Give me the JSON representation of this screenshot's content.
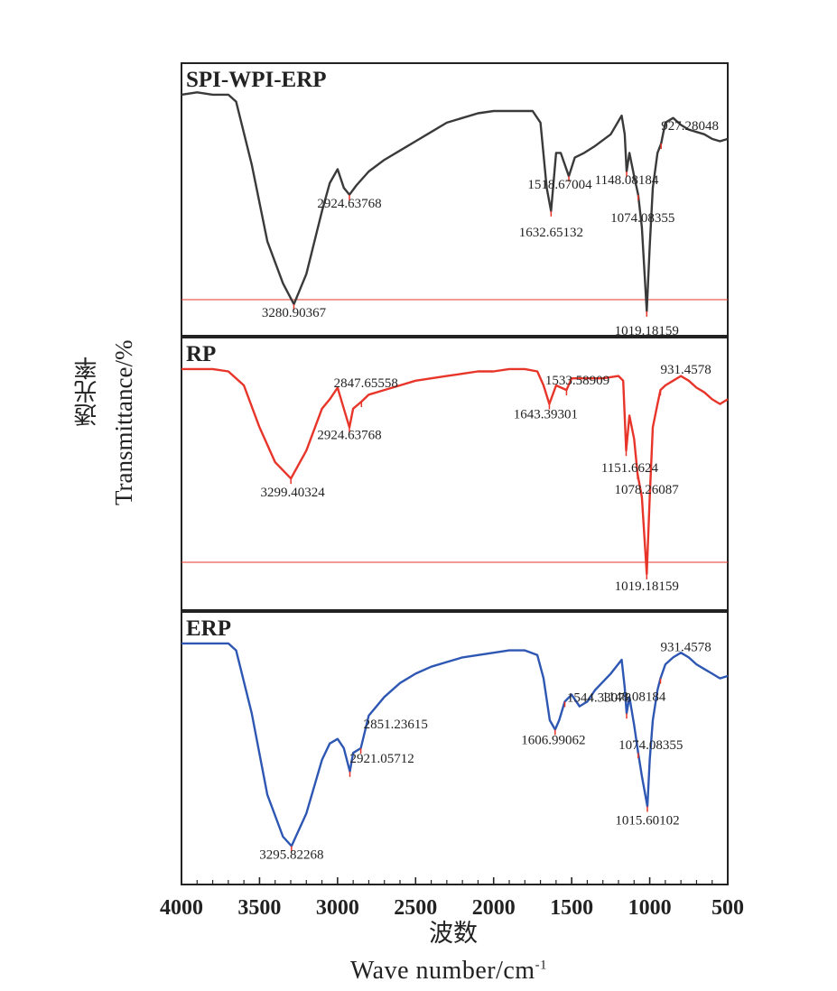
{
  "chart_data": {
    "type": "line",
    "xlim": [
      4000,
      500
    ],
    "x_ticks": [
      4000,
      3500,
      3000,
      2500,
      2000,
      1500,
      1000,
      500
    ],
    "x_tick_labels": [
      "4000",
      "3500",
      "3000",
      "2500",
      "2000",
      "1500",
      "1000",
      "500"
    ],
    "xlabel_cn": "波数",
    "xlabel_en_main": "Wave  number/cm",
    "xlabel_en_sup": "-1",
    "ylabel_cn": "透光率",
    "ylabel_en": "Transmittance/%",
    "panels": [
      {
        "name": "SPI-WPI-ERP",
        "color": "#3a3a3a",
        "points": [
          [
            4000,
            0.05
          ],
          [
            3900,
            0.04
          ],
          [
            3800,
            0.05
          ],
          [
            3700,
            0.05
          ],
          [
            3650,
            0.08
          ],
          [
            3550,
            0.35
          ],
          [
            3450,
            0.68
          ],
          [
            3350,
            0.86
          ],
          [
            3280,
            0.95
          ],
          [
            3200,
            0.82
          ],
          [
            3100,
            0.55
          ],
          [
            3050,
            0.43
          ],
          [
            3000,
            0.37
          ],
          [
            2960,
            0.45
          ],
          [
            2924,
            0.48
          ],
          [
            2880,
            0.44
          ],
          [
            2800,
            0.38
          ],
          [
            2700,
            0.33
          ],
          [
            2600,
            0.29
          ],
          [
            2500,
            0.25
          ],
          [
            2400,
            0.21
          ],
          [
            2300,
            0.17
          ],
          [
            2200,
            0.15
          ],
          [
            2100,
            0.13
          ],
          [
            2000,
            0.12
          ],
          [
            1900,
            0.12
          ],
          [
            1800,
            0.12
          ],
          [
            1750,
            0.12
          ],
          [
            1700,
            0.17
          ],
          [
            1660,
            0.45
          ],
          [
            1632,
            0.55
          ],
          [
            1600,
            0.3
          ],
          [
            1570,
            0.3
          ],
          [
            1518,
            0.4
          ],
          [
            1480,
            0.32
          ],
          [
            1420,
            0.3
          ],
          [
            1350,
            0.27
          ],
          [
            1250,
            0.22
          ],
          [
            1180,
            0.14
          ],
          [
            1160,
            0.22
          ],
          [
            1148,
            0.38
          ],
          [
            1130,
            0.3
          ],
          [
            1100,
            0.4
          ],
          [
            1074,
            0.48
          ],
          [
            1050,
            0.62
          ],
          [
            1019,
            0.98
          ],
          [
            1000,
            0.7
          ],
          [
            980,
            0.45
          ],
          [
            950,
            0.3
          ],
          [
            927,
            0.26
          ],
          [
            900,
            0.17
          ],
          [
            850,
            0.15
          ],
          [
            800,
            0.18
          ],
          [
            750,
            0.2
          ],
          [
            700,
            0.21
          ],
          [
            650,
            0.22
          ],
          [
            600,
            0.24
          ],
          [
            550,
            0.25
          ],
          [
            500,
            0.24
          ]
        ],
        "baseline": 0.93,
        "annotations": [
          {
            "x": 3280,
            "label": "3280.90367"
          },
          {
            "x": 2924,
            "label": "2924.63768"
          },
          {
            "x": 1632,
            "label": "1632.65132"
          },
          {
            "x": 1518,
            "label": "1518.67004"
          },
          {
            "x": 1148,
            "label": "1148.08184"
          },
          {
            "x": 1074,
            "label": "1074.08355"
          },
          {
            "x": 1019,
            "label": "1019.18159"
          },
          {
            "x": 927,
            "label": "927.28048"
          }
        ]
      },
      {
        "name": "RP",
        "color": "#e8352a",
        "points": [
          [
            4000,
            0.05
          ],
          [
            3900,
            0.05
          ],
          [
            3800,
            0.05
          ],
          [
            3700,
            0.06
          ],
          [
            3600,
            0.12
          ],
          [
            3500,
            0.3
          ],
          [
            3400,
            0.45
          ],
          [
            3299,
            0.52
          ],
          [
            3200,
            0.4
          ],
          [
            3100,
            0.22
          ],
          [
            3050,
            0.18
          ],
          [
            3000,
            0.13
          ],
          [
            2960,
            0.22
          ],
          [
            2924,
            0.3
          ],
          [
            2900,
            0.22
          ],
          [
            2847,
            0.19
          ],
          [
            2800,
            0.16
          ],
          [
            2700,
            0.14
          ],
          [
            2600,
            0.12
          ],
          [
            2500,
            0.1
          ],
          [
            2400,
            0.09
          ],
          [
            2300,
            0.08
          ],
          [
            2200,
            0.07
          ],
          [
            2100,
            0.06
          ],
          [
            2000,
            0.06
          ],
          [
            1900,
            0.05
          ],
          [
            1800,
            0.05
          ],
          [
            1720,
            0.06
          ],
          [
            1680,
            0.12
          ],
          [
            1643,
            0.2
          ],
          [
            1600,
            0.12
          ],
          [
            1533,
            0.14
          ],
          [
            1500,
            0.09
          ],
          [
            1450,
            0.09
          ],
          [
            1400,
            0.09
          ],
          [
            1300,
            0.09
          ],
          [
            1200,
            0.08
          ],
          [
            1170,
            0.1
          ],
          [
            1151,
            0.4
          ],
          [
            1130,
            0.25
          ],
          [
            1100,
            0.35
          ],
          [
            1078,
            0.5
          ],
          [
            1050,
            0.6
          ],
          [
            1019,
            0.93
          ],
          [
            1000,
            0.6
          ],
          [
            980,
            0.3
          ],
          [
            950,
            0.2
          ],
          [
            931,
            0.14
          ],
          [
            900,
            0.12
          ],
          [
            850,
            0.1
          ],
          [
            800,
            0.08
          ],
          [
            750,
            0.1
          ],
          [
            700,
            0.13
          ],
          [
            650,
            0.15
          ],
          [
            600,
            0.18
          ],
          [
            550,
            0.2
          ],
          [
            500,
            0.18
          ]
        ],
        "baseline": 0.88,
        "annotations": [
          {
            "x": 3299,
            "label": "3299.40324"
          },
          {
            "x": 2924,
            "label": "2924.63768"
          },
          {
            "x": 2847,
            "label": "2847.65558"
          },
          {
            "x": 1643,
            "label": "1643.39301"
          },
          {
            "x": 1533,
            "label": "1533.58909"
          },
          {
            "x": 1151,
            "label": "1151.6624"
          },
          {
            "x": 1078,
            "label": "1078.26087"
          },
          {
            "x": 1019,
            "label": "1019.18159"
          },
          {
            "x": 931,
            "label": "931.4578"
          }
        ]
      },
      {
        "name": "ERP",
        "color": "#2e57b3",
        "points": [
          [
            4000,
            0.05
          ],
          [
            3900,
            0.05
          ],
          [
            3800,
            0.05
          ],
          [
            3700,
            0.05
          ],
          [
            3650,
            0.08
          ],
          [
            3550,
            0.35
          ],
          [
            3450,
            0.7
          ],
          [
            3350,
            0.88
          ],
          [
            3295,
            0.92
          ],
          [
            3200,
            0.78
          ],
          [
            3100,
            0.55
          ],
          [
            3050,
            0.48
          ],
          [
            3000,
            0.46
          ],
          [
            2960,
            0.5
          ],
          [
            2921,
            0.6
          ],
          [
            2900,
            0.52
          ],
          [
            2851,
            0.5
          ],
          [
            2800,
            0.36
          ],
          [
            2700,
            0.28
          ],
          [
            2600,
            0.22
          ],
          [
            2500,
            0.18
          ],
          [
            2400,
            0.15
          ],
          [
            2300,
            0.13
          ],
          [
            2200,
            0.11
          ],
          [
            2100,
            0.1
          ],
          [
            2000,
            0.09
          ],
          [
            1900,
            0.08
          ],
          [
            1800,
            0.08
          ],
          [
            1720,
            0.1
          ],
          [
            1680,
            0.2
          ],
          [
            1640,
            0.38
          ],
          [
            1606,
            0.42
          ],
          [
            1580,
            0.38
          ],
          [
            1544,
            0.3
          ],
          [
            1500,
            0.27
          ],
          [
            1450,
            0.32
          ],
          [
            1400,
            0.3
          ],
          [
            1350,
            0.25
          ],
          [
            1250,
            0.18
          ],
          [
            1180,
            0.12
          ],
          [
            1160,
            0.24
          ],
          [
            1148,
            0.35
          ],
          [
            1130,
            0.28
          ],
          [
            1100,
            0.4
          ],
          [
            1074,
            0.52
          ],
          [
            1050,
            0.62
          ],
          [
            1015,
            0.75
          ],
          [
            1000,
            0.55
          ],
          [
            980,
            0.38
          ],
          [
            950,
            0.25
          ],
          [
            931,
            0.2
          ],
          [
            900,
            0.14
          ],
          [
            850,
            0.11
          ],
          [
            800,
            0.09
          ],
          [
            750,
            0.11
          ],
          [
            700,
            0.14
          ],
          [
            650,
            0.16
          ],
          [
            600,
            0.18
          ],
          [
            550,
            0.2
          ],
          [
            500,
            0.19
          ]
        ],
        "annotations": [
          {
            "x": 3295,
            "label": "3295.82268"
          },
          {
            "x": 2921,
            "label": "2921.05712"
          },
          {
            "x": 2851,
            "label": "2851.23615"
          },
          {
            "x": 1606,
            "label": "1606.99062"
          },
          {
            "x": 1544,
            "label": "1544.33078"
          },
          {
            "x": 1148,
            "label": "1148.08184"
          },
          {
            "x": 1074,
            "label": "1074.08355"
          },
          {
            "x": 1015,
            "label": "1015.60102"
          },
          {
            "x": 931,
            "label": "931.4578"
          }
        ]
      }
    ]
  }
}
